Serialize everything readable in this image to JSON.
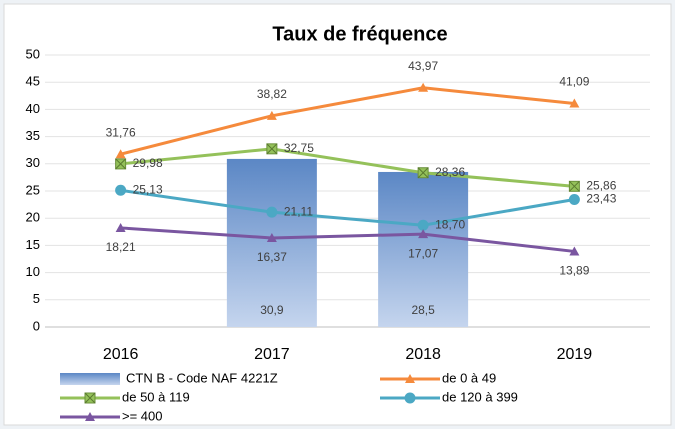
{
  "chart_data": {
    "type": "combo",
    "title": "Taux de fréquence",
    "categories": [
      "2016",
      "2017",
      "2018",
      "2019"
    ],
    "ylim": [
      0,
      50
    ],
    "yticks": [
      0,
      5,
      10,
      15,
      20,
      25,
      30,
      35,
      40,
      45,
      50
    ],
    "grid": true,
    "series": [
      {
        "name": "CTN B - Code NAF 4221Z",
        "type": "bar",
        "color": "#5b87c5",
        "values": [
          null,
          30.9,
          28.5,
          null
        ],
        "value_labels": [
          null,
          "30,9",
          "28,5",
          null
        ]
      },
      {
        "name": "de 0 à 49",
        "type": "line",
        "marker": "triangle",
        "color": "#f58a3c",
        "values": [
          31.76,
          38.82,
          43.97,
          41.09
        ],
        "value_labels": [
          "31,76",
          "38,82",
          "43,97",
          "41,09"
        ]
      },
      {
        "name": "de 50 à 119",
        "type": "line",
        "marker": "square-x",
        "color": "#94c15a",
        "values": [
          29.98,
          32.75,
          28.36,
          25.86
        ],
        "value_labels": [
          "29,98",
          "32,75",
          "28,36",
          "25,86"
        ]
      },
      {
        "name": "de 120 à 399",
        "type": "line",
        "marker": "circle",
        "color": "#4ba8c4",
        "values": [
          25.13,
          21.11,
          18.7,
          23.43
        ],
        "value_labels": [
          "25,13",
          "21,11",
          "18,70",
          "23,43"
        ]
      },
      {
        "name": ">= 400",
        "type": "line",
        "marker": "triangle",
        "color": "#7a56a0",
        "values": [
          18.21,
          16.37,
          17.07,
          13.89
        ],
        "value_labels": [
          "18,21",
          "16,37",
          "17,07",
          "13,89"
        ]
      }
    ]
  }
}
